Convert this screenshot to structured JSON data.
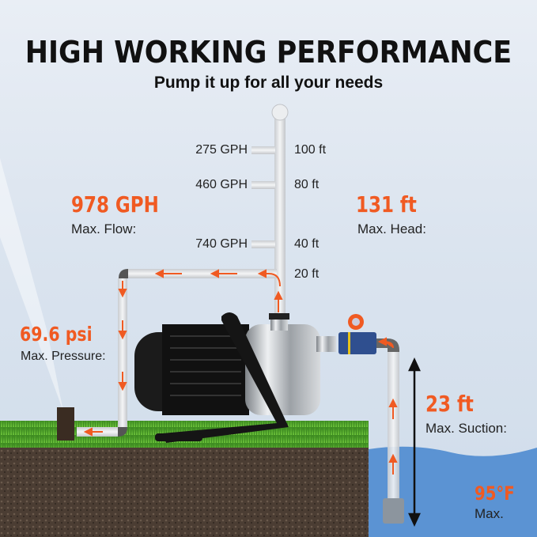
{
  "header": {
    "title": "HIGH WORKING PERFORMANCE",
    "subtitle": "Pump it up for all your needs"
  },
  "head_scale": [
    {
      "flow": "275 GPH",
      "height": "100 ft"
    },
    {
      "flow": "460 GPH",
      "height": "80 ft"
    },
    {
      "flow": "740 GPH",
      "height": "40 ft"
    },
    {
      "flow": "",
      "height": "20 ft"
    }
  ],
  "specs": {
    "flow": {
      "value": "978 GPH",
      "label": "Max. Flow:"
    },
    "head": {
      "value": "131 ft",
      "label": "Max. Head:"
    },
    "pressure": {
      "value": "69.6 psi",
      "label": "Max. Pressure:"
    },
    "suction": {
      "value": "23 ft",
      "label": "Max. Suction:"
    },
    "temperature": {
      "value": "95°F",
      "label": "Max."
    }
  },
  "colors": {
    "accent": "#f05a22",
    "water": "#5b93d3",
    "grass": "#4a9a2a",
    "soil": "#4a3b30"
  }
}
